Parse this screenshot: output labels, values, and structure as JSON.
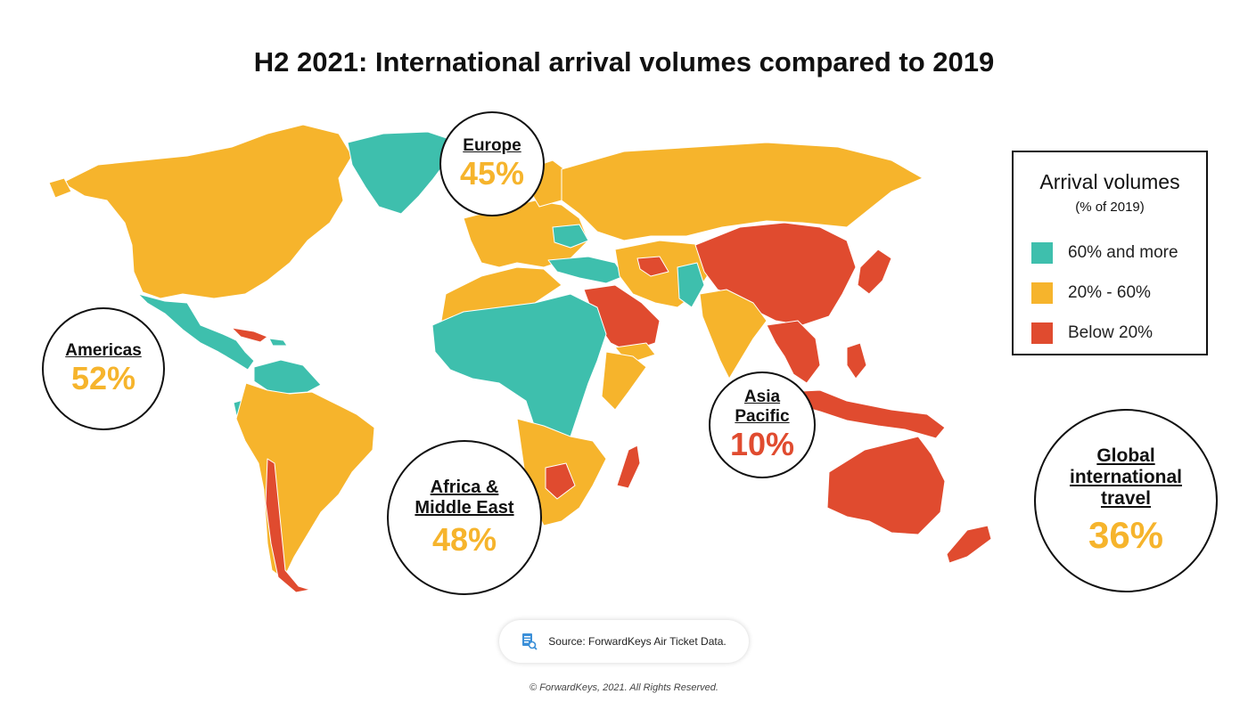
{
  "title": "H2 2021: International arrival volumes compared to 2019",
  "colors": {
    "high": "#3ebfad",
    "mid": "#f6b42c",
    "low": "#e04b2f",
    "text": "#111111"
  },
  "legend": {
    "title": "Arrival volumes",
    "subtitle": "(% of 2019)",
    "items": [
      {
        "label": "60% and more",
        "color": "#3ebfad"
      },
      {
        "label": "20% - 60%",
        "color": "#f6b42c"
      },
      {
        "label": "Below 20%",
        "color": "#e04b2f"
      }
    ]
  },
  "regions": {
    "europe": {
      "name": "Europe",
      "value": "45%",
      "color": "#f6b42c"
    },
    "americas": {
      "name": "Americas",
      "value": "52%",
      "color": "#f6b42c"
    },
    "africa": {
      "name_line1": "Africa &",
      "name_line2": "Middle East",
      "value": "48%",
      "color": "#f6b42c"
    },
    "asia": {
      "name_line1": "Asia",
      "name_line2": "Pacific",
      "value": "10%",
      "color": "#e04b2f"
    },
    "global": {
      "name_line1": "Global",
      "name_line2": "international",
      "name_line3": "travel",
      "value": "36%",
      "color": "#f6b42c"
    }
  },
  "source": {
    "icon": "document-search-icon",
    "text": "Source: ForwardKeys Air Ticket Data."
  },
  "copyright": "© ForwardKeys, 2021. All Rights Reserved."
}
